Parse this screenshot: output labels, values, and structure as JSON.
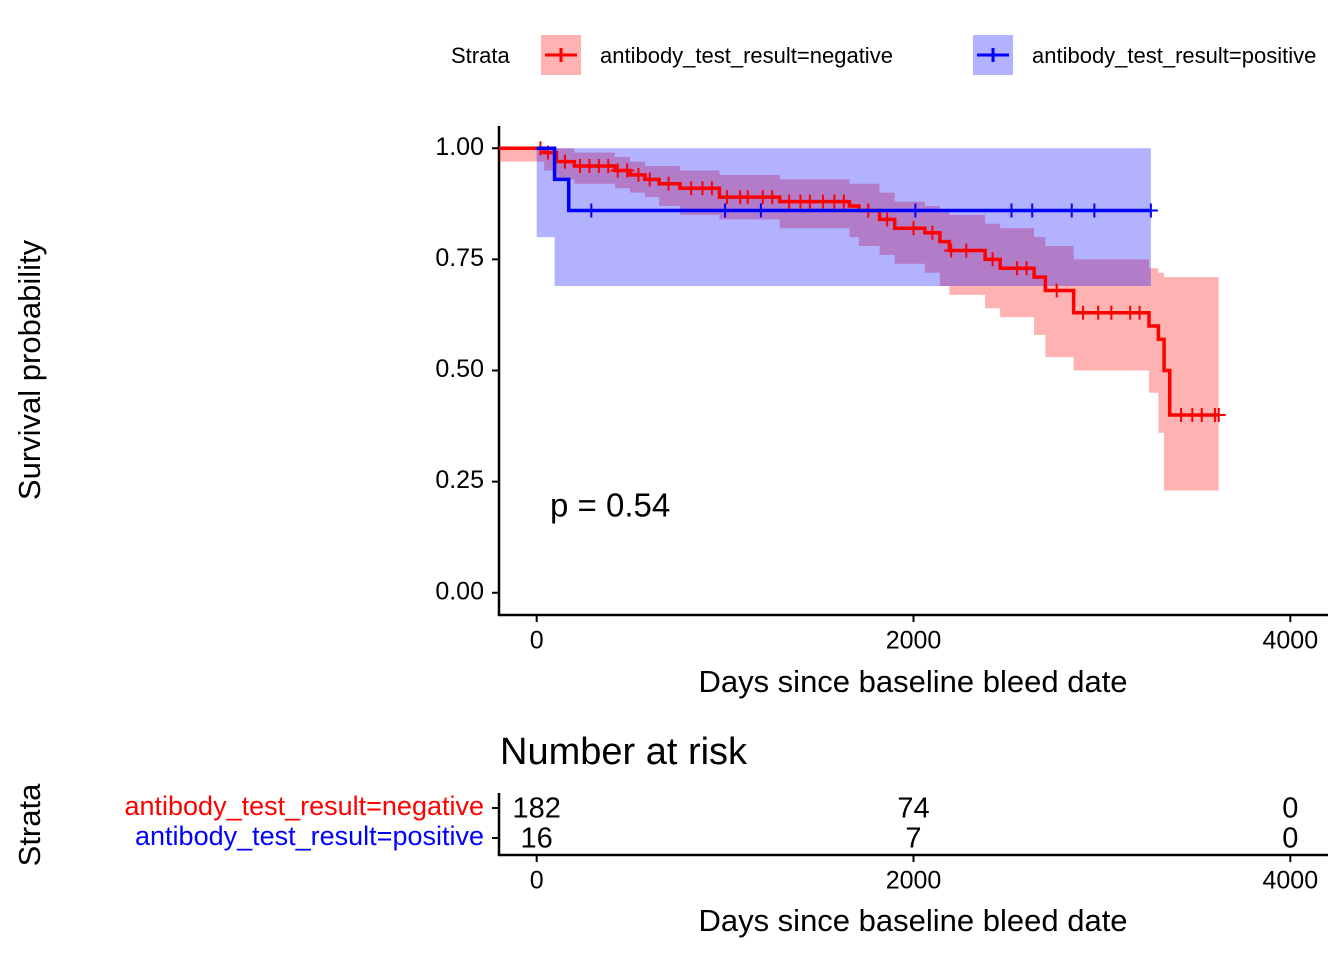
{
  "chart_data": [
    {
      "type": "km",
      "xlabel": "Days since baseline bleed date",
      "ylabel": "Survival probability",
      "legend_title": "Strata",
      "legend_position": "top",
      "annotation": "p = 0.54",
      "xlim": [
        -200,
        4200
      ],
      "xticks": [
        0,
        2000,
        4000
      ],
      "ylim": [
        -0.05,
        1.05
      ],
      "yticks": [
        {
          "value": 0,
          "label": "0.00"
        },
        {
          "value": 0.25,
          "label": "0.25"
        },
        {
          "value": 0.5,
          "label": "0.50"
        },
        {
          "value": 0.75,
          "label": "0.75"
        },
        {
          "value": 1,
          "label": "1.00"
        }
      ],
      "series": [
        {
          "name": "antibody_test_result=negative",
          "color": "#ff0000",
          "x": [
            -200,
            40,
            105,
            200,
            415,
            495,
            575,
            650,
            760,
            970,
            1290,
            1660,
            1710,
            1820,
            1900,
            2060,
            2140,
            2190,
            2380,
            2460,
            2640,
            2700,
            2850,
            3250,
            3300,
            3330,
            3360,
            3620
          ],
          "values": [
            1.0,
            0.99,
            0.97,
            0.96,
            0.95,
            0.94,
            0.93,
            0.92,
            0.91,
            0.89,
            0.88,
            0.87,
            0.86,
            0.84,
            0.82,
            0.81,
            0.79,
            0.77,
            0.75,
            0.73,
            0.71,
            0.68,
            0.63,
            0.6,
            0.57,
            0.5,
            0.4,
            0.4
          ],
          "lower": [
            1.0,
            0.97,
            0.95,
            0.93,
            0.92,
            0.91,
            0.9,
            0.89,
            0.87,
            0.85,
            0.84,
            0.82,
            0.8,
            0.78,
            0.76,
            0.74,
            0.72,
            0.69,
            0.67,
            0.64,
            0.62,
            0.58,
            0.53,
            0.5,
            0.45,
            0.36,
            0.23,
            0.23
          ],
          "upper": [
            1.0,
            1.0,
            1.0,
            0.99,
            0.98,
            0.97,
            0.96,
            0.96,
            0.95,
            0.94,
            0.93,
            0.92,
            0.92,
            0.9,
            0.88,
            0.87,
            0.86,
            0.85,
            0.83,
            0.82,
            0.8,
            0.78,
            0.75,
            0.73,
            0.72,
            0.71,
            0.71,
            0.71
          ],
          "censored_x": [
            20,
            60,
            150,
            230,
            280,
            330,
            380,
            430,
            480,
            540,
            600,
            700,
            820,
            880,
            930,
            1010,
            1080,
            1120,
            1200,
            1250,
            1340,
            1400,
            1450,
            1520,
            1580,
            1630,
            1760,
            1860,
            2000,
            2100,
            2200,
            2280,
            2420,
            2550,
            2600,
            2760,
            2900,
            2980,
            3050,
            3150,
            3200,
            3420,
            3480,
            3530,
            3600,
            3620
          ]
        },
        {
          "name": "antibody_test_result=positive",
          "color": "#0000ff",
          "x": [
            0,
            95,
            170,
            3260
          ],
          "values": [
            1.0,
            0.93,
            0.86,
            0.86
          ],
          "lower": [
            1.0,
            0.8,
            0.69,
            0.69
          ],
          "upper": [
            1.0,
            1.0,
            1.0,
            1.0
          ],
          "censored_x": [
            290,
            1000,
            1190,
            2010,
            2520,
            2630,
            2840,
            2960,
            3260
          ]
        }
      ]
    },
    {
      "type": "risk_table",
      "title": "Number at risk",
      "xlabel": "Days since baseline bleed date",
      "ylabel": "Strata",
      "xlim": [
        -200,
        4200
      ],
      "xticks": [
        0,
        2000,
        4000
      ],
      "rows": [
        {
          "name": "antibody_test_result=negative",
          "color": "#ff0000",
          "times": [
            0,
            2000,
            4000
          ],
          "values": [
            182,
            74,
            0
          ]
        },
        {
          "name": "antibody_test_result=positive",
          "color": "#0000ff",
          "times": [
            0,
            2000,
            4000
          ],
          "values": [
            16,
            7,
            0
          ]
        }
      ]
    }
  ]
}
